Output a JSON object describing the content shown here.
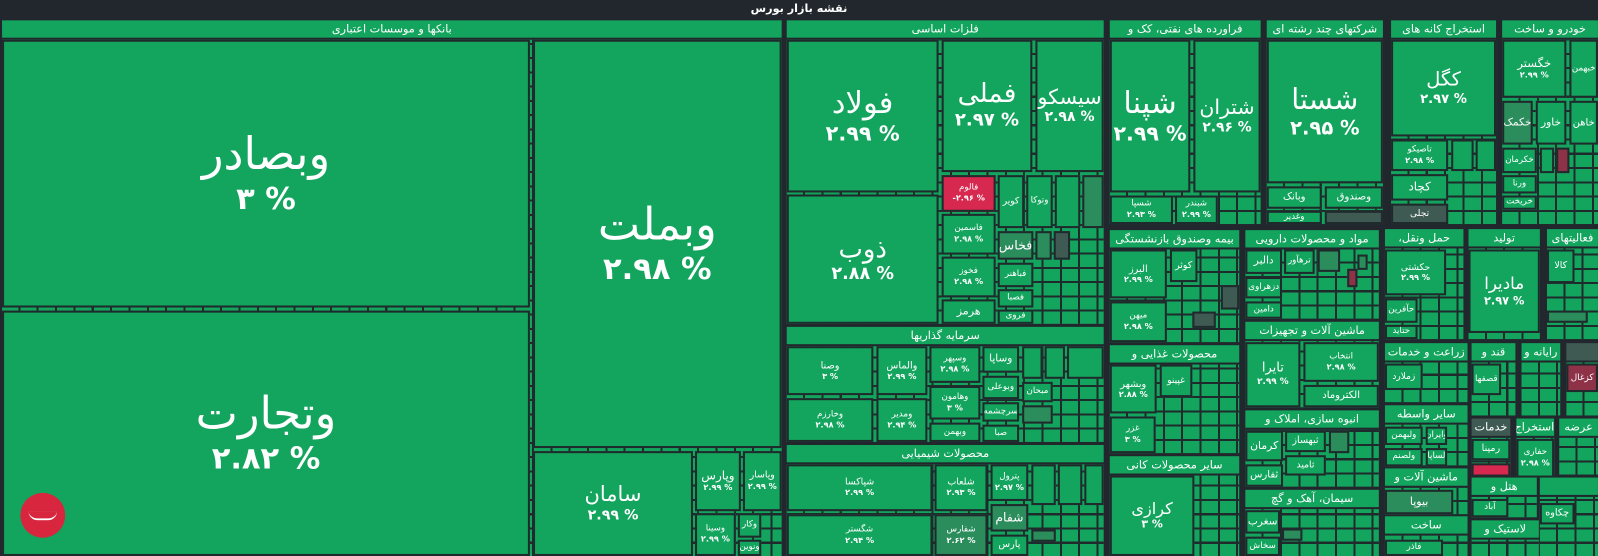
{
  "page_title": "نقشه بازار بورس",
  "colors": {
    "up": "#13a55e",
    "up_dim": "#2b8c5c",
    "neutral": "#3e5a52",
    "down": "#d7294f",
    "down_dim": "#8e3248",
    "background": "#22272d"
  },
  "sectors": [
    {
      "title": "بانکها و موسسات اعتباری",
      "stocks": [
        {
          "name": "وبصادر",
          "change": "۳ %"
        },
        {
          "name": "وتجارت",
          "change": "۲.۸۲ %"
        },
        {
          "name": "وبملت",
          "change": "۲.۹۸ %"
        },
        {
          "name": "سامان",
          "change": "۲.۹۹ %"
        },
        {
          "name": "وپارس",
          "change": "۲.۹۹ %"
        },
        {
          "name": "وپاسار",
          "change": "۲.۹۹ %"
        },
        {
          "name": "وسینا",
          "change": "۲.۹۹ %"
        },
        {
          "name": "وکار"
        },
        {
          "name": "ونوین"
        }
      ]
    },
    {
      "title": "فلزات اساسی",
      "stocks": [
        {
          "name": "فولاد",
          "change": "۲.۹۹ %"
        },
        {
          "name": "ذوب",
          "change": "۲.۸۸ %"
        },
        {
          "name": "فملی",
          "change": "۲.۹۷ %"
        },
        {
          "name": "سیسکو",
          "change": "۲.۹۸ %"
        },
        {
          "name": "فالوم",
          "change": "-۲.۹۶ %",
          "state": "down"
        },
        {
          "name": "کویر"
        },
        {
          "name": "وتوکا"
        },
        {
          "name": "فاسمین",
          "change": "۲.۹۸ %"
        },
        {
          "name": "فخوز",
          "change": "۲.۹۸ %"
        },
        {
          "name": "هرمز"
        },
        {
          "name": "فخاس",
          "state": "up-dim"
        },
        {
          "name": "فباهنر"
        },
        {
          "name": "فصبا"
        },
        {
          "name": "فروی"
        }
      ]
    },
    {
      "title": "سرمایه گذاریها",
      "stocks": [
        {
          "name": "وصنا",
          "change": "۳ %"
        },
        {
          "name": "وخارزم",
          "change": "۲.۹۸ %"
        },
        {
          "name": "والماس",
          "change": "۲.۹۹ %"
        },
        {
          "name": "ومدیر",
          "change": "۲.۹۴ %"
        },
        {
          "name": "وسپهر",
          "change": "۲.۹۸ %"
        },
        {
          "name": "وهامون",
          "change": "۳ %"
        },
        {
          "name": "وبهمن"
        },
        {
          "name": "وساپا"
        },
        {
          "name": "وبوعلی"
        },
        {
          "name": "سرچشمه"
        },
        {
          "name": "صبا"
        },
        {
          "name": "مبحان"
        }
      ]
    },
    {
      "title": "محصولات شیمیایی",
      "stocks": [
        {
          "name": "شپاکسا",
          "change": "۲.۹۹ %"
        },
        {
          "name": "شگستر",
          "change": "۲.۹۴ %"
        },
        {
          "name": "شلعاب",
          "change": "۲.۹۳ %"
        },
        {
          "name": "شفارس",
          "change": "۲.۶۲ %",
          "state": "up-dim"
        },
        {
          "name": "پترول",
          "change": "۲.۹۷ %"
        },
        {
          "name": "شفام",
          "state": "up-dim"
        },
        {
          "name": "پارس"
        }
      ]
    },
    {
      "title": "فراورده های نفتی، کک و",
      "stocks": [
        {
          "name": "شپنا",
          "change": "۲.۹۹ %"
        },
        {
          "name": "شتران",
          "change": "۲.۹۶ %"
        },
        {
          "name": "شسپا",
          "change": "۲.۹۳ %"
        },
        {
          "name": "شبندر",
          "change": "۲.۹۹ %"
        }
      ]
    },
    {
      "title": "شرکتهای چند رشته ای",
      "stocks": [
        {
          "name": "شستا",
          "change": "۲.۹۵ %"
        },
        {
          "name": "وبانک"
        },
        {
          "name": "وصندوق"
        },
        {
          "name": "وغدیر"
        }
      ]
    },
    {
      "title": "استخراج کانه های",
      "stocks": [
        {
          "name": "کگل",
          "change": "۲.۹۷ %"
        },
        {
          "name": "تاصیکو",
          "change": "۲.۹۸ %"
        },
        {
          "name": "کچاد"
        },
        {
          "name": "تجلی",
          "state": "neutral"
        }
      ]
    },
    {
      "title": "خودرو و ساخت",
      "stocks": [
        {
          "name": "خگستر",
          "change": "۲.۹۹ %"
        },
        {
          "name": "خبهمن"
        },
        {
          "name": "خکمک",
          "state": "up-dim"
        },
        {
          "name": "خاور"
        },
        {
          "name": "خاهن"
        },
        {
          "name": "خکرمان"
        },
        {
          "name": "ورنا"
        },
        {
          "name": "خریخت"
        }
      ]
    },
    {
      "title": "بیمه وصندوق بازنشستگی",
      "stocks": [
        {
          "name": "البرز",
          "change": "۲.۹۹ %"
        },
        {
          "name": "میهن",
          "change": "۲.۹۸ %"
        },
        {
          "name": "کوثر"
        }
      ]
    },
    {
      "title": "محصولات غذایی و",
      "stocks": [
        {
          "name": "وبشهر",
          "change": "۲.۸۸ %"
        },
        {
          "name": "غپینو"
        },
        {
          "name": "غزر",
          "change": "۳ %"
        }
      ]
    },
    {
      "title": "سایر محصولات کانی",
      "stocks": [
        {
          "name": "کرازی",
          "change": "۳ %"
        }
      ]
    },
    {
      "title": "مواد و محصولات دارویی",
      "stocks": [
        {
          "name": "دالبر"
        },
        {
          "name": "ترهآور"
        },
        {
          "name": "دزهراوی"
        },
        {
          "name": "دامین"
        }
      ]
    },
    {
      "title": "ماشین آلات و تجهیزات",
      "stocks": [
        {
          "name": "تایرا",
          "change": "۲.۹۹ %"
        },
        {
          "name": "انتخاب",
          "change": "۲.۹۸ %"
        },
        {
          "name": "الکتروماد"
        }
      ]
    },
    {
      "title": "انبوه سازی، املاک و",
      "stocks": [
        {
          "name": "کرمان"
        },
        {
          "name": "ثبهساز"
        },
        {
          "name": "ثامید"
        },
        {
          "name": "ثفارس"
        }
      ]
    },
    {
      "title": "سیمان، آهک و گچ",
      "stocks": [
        {
          "name": "سغرب"
        },
        {
          "name": "سخاش"
        }
      ]
    },
    {
      "title": "حمل ونقل،",
      "stocks": [
        {
          "name": "حکشتی",
          "change": "۲.۹۹ %"
        },
        {
          "name": "حآفرین"
        },
        {
          "name": "حتاید"
        }
      ]
    },
    {
      "title": "تولید",
      "stocks": [
        {
          "name": "مادیرا",
          "change": "۲.۹۷ %"
        }
      ]
    },
    {
      "title": "فعالیتهای",
      "stocks": [
        {
          "name": "کالا"
        }
      ]
    },
    {
      "title": "زراعت و خدمات",
      "stocks": [
        {
          "name": "زملارد"
        }
      ]
    },
    {
      "title": "قند و",
      "stocks": [
        {
          "name": "قصفها"
        }
      ]
    },
    {
      "title": "رایانه و",
      "stocks": []
    },
    {
      "header_state": "neutral",
      "stocks": [
        {
          "name": "کزغال",
          "state": "down-dim"
        }
      ]
    },
    {
      "title": "سایر واسطه",
      "stocks": [
        {
          "name": "ولبهمن"
        },
        {
          "name": "وایران"
        },
        {
          "name": "ولصنم"
        },
        {
          "name": "لساپا"
        }
      ]
    },
    {
      "title": "ماشین آلات و",
      "stocks": [
        {
          "name": "بیوپا",
          "state": "up-dim"
        }
      ]
    },
    {
      "title": "ساخت",
      "stocks": [
        {
          "name": "فاذر"
        }
      ]
    },
    {
      "title": "خدمات",
      "header_state": "neutral",
      "stocks": [
        {
          "name": "رمپنا"
        }
      ]
    },
    {
      "title": "استخراج",
      "stocks": [
        {
          "name": "حفاری",
          "change": "۲.۹۸ %"
        }
      ]
    },
    {
      "title": "عرضه",
      "stocks": []
    },
    {
      "title": "هتل و",
      "stocks": [
        {
          "name": "آباد"
        }
      ]
    },
    {
      "title": "لاستیک و",
      "stocks": []
    },
    {
      "stocks": [
        {
          "name": "چکاوه"
        }
      ]
    }
  ]
}
